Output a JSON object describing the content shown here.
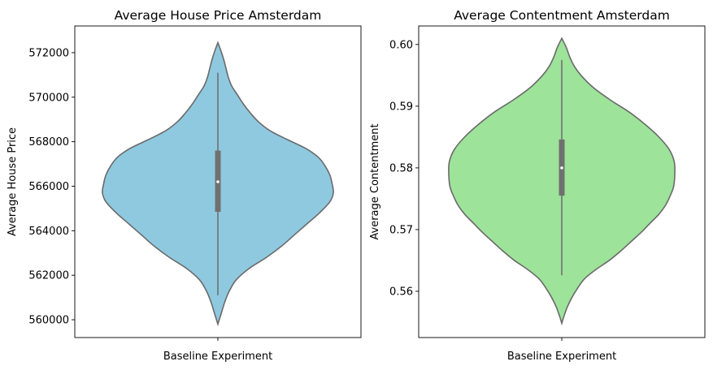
{
  "chart_data": [
    {
      "type": "violin",
      "title": "Average House Price Amsterdam",
      "xlabel": "",
      "ylabel": "Average House Price",
      "categories": [
        "Baseline Experiment"
      ],
      "ylim": [
        559200,
        573200
      ],
      "yticks": [
        560000,
        562000,
        564000,
        566000,
        568000,
        570000,
        572000
      ],
      "ytick_labels": [
        "560000",
        "562000",
        "564000",
        "566000",
        "568000",
        "570000",
        "572000"
      ],
      "fill_color": "#8fc9e0",
      "line_color": "#6a6a6a",
      "stats": {
        "median": 566200,
        "q1": 564850,
        "q3": 567600,
        "whisker_low": 561100,
        "whisker_high": 571100,
        "min": 559800,
        "max": 572450
      },
      "density": [
        [
          559800,
          0.0
        ],
        [
          560300,
          0.03
        ],
        [
          560800,
          0.06
        ],
        [
          561300,
          0.1
        ],
        [
          561800,
          0.16
        ],
        [
          562300,
          0.27
        ],
        [
          562800,
          0.42
        ],
        [
          563300,
          0.55
        ],
        [
          563800,
          0.66
        ],
        [
          564300,
          0.77
        ],
        [
          564800,
          0.88
        ],
        [
          565300,
          0.97
        ],
        [
          565700,
          1.0
        ],
        [
          566100,
          0.99
        ],
        [
          566500,
          0.97
        ],
        [
          566900,
          0.93
        ],
        [
          567300,
          0.87
        ],
        [
          567700,
          0.76
        ],
        [
          568100,
          0.6
        ],
        [
          568500,
          0.45
        ],
        [
          568900,
          0.35
        ],
        [
          569300,
          0.28
        ],
        [
          569700,
          0.22
        ],
        [
          570100,
          0.17
        ],
        [
          570500,
          0.12
        ],
        [
          570900,
          0.09
        ],
        [
          571300,
          0.07
        ],
        [
          571700,
          0.05
        ],
        [
          572100,
          0.025
        ],
        [
          572450,
          0.0
        ]
      ]
    },
    {
      "type": "violin",
      "title": "Average Contentment Amsterdam",
      "xlabel": "",
      "ylabel": "Average Contentment",
      "categories": [
        "Baseline Experiment"
      ],
      "ylim": [
        0.5525,
        0.603
      ],
      "yticks": [
        0.56,
        0.57,
        0.58,
        0.59,
        0.6
      ],
      "ytick_labels": [
        "0.56",
        "0.57",
        "0.58",
        "0.59",
        "0.60"
      ],
      "fill_color": "#9de39a",
      "line_color": "#6a6a6a",
      "stats": {
        "median": 0.58,
        "q1": 0.5755,
        "q3": 0.5846,
        "whisker_low": 0.5626,
        "whisker_high": 0.5975,
        "min": 0.5548,
        "max": 0.601
      },
      "density": [
        [
          0.5548,
          0.0
        ],
        [
          0.556,
          0.02
        ],
        [
          0.5575,
          0.05
        ],
        [
          0.559,
          0.09
        ],
        [
          0.5605,
          0.14
        ],
        [
          0.562,
          0.2
        ],
        [
          0.5635,
          0.3
        ],
        [
          0.565,
          0.42
        ],
        [
          0.5665,
          0.52
        ],
        [
          0.568,
          0.61
        ],
        [
          0.5695,
          0.7
        ],
        [
          0.571,
          0.78
        ],
        [
          0.5725,
          0.86
        ],
        [
          0.574,
          0.92
        ],
        [
          0.5755,
          0.96
        ],
        [
          0.577,
          0.99
        ],
        [
          0.579,
          1.0
        ],
        [
          0.581,
          0.995
        ],
        [
          0.583,
          0.95
        ],
        [
          0.585,
          0.86
        ],
        [
          0.587,
          0.74
        ],
        [
          0.589,
          0.6
        ],
        [
          0.591,
          0.43
        ],
        [
          0.593,
          0.28
        ],
        [
          0.595,
          0.17
        ],
        [
          0.5965,
          0.11
        ],
        [
          0.598,
          0.07
        ],
        [
          0.5995,
          0.04
        ],
        [
          0.601,
          0.0
        ]
      ]
    }
  ]
}
